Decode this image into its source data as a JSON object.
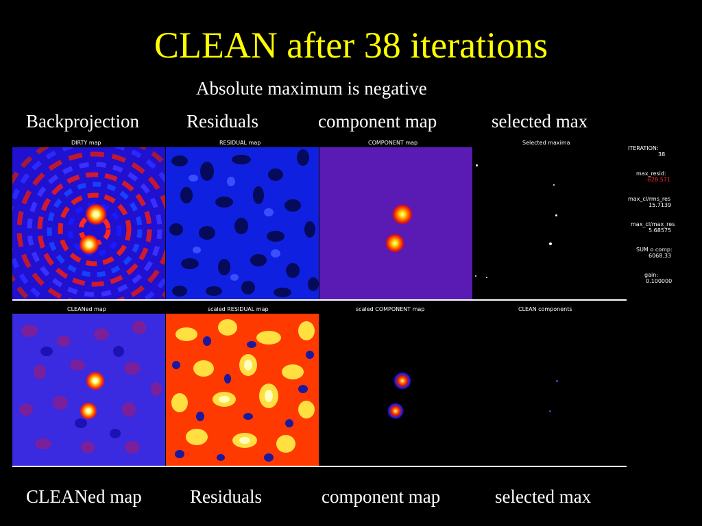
{
  "title": "CLEAN after 38 iterations",
  "subtitle": "Absolute maximum is negative",
  "top_labels": [
    "Backprojection",
    "Residuals",
    "component map",
    "selected max"
  ],
  "bottom_labels": [
    "CLEANed map",
    "Residuals",
    "component map",
    "selected max"
  ],
  "panels": {
    "dirty": "DIRTY map",
    "residual": "RESIDUAL map",
    "component": "COMPONENT map",
    "selected": "Selected maxima",
    "cleaned": "CLEANed map",
    "scaled_residual": "scaled RESIDUAL map",
    "scaled_component": "scaled COMPONENT map",
    "clean_components": "CLEAN components"
  },
  "info": {
    "iteration_label": "ITERATION:",
    "iteration_value": "38",
    "max_resid_label": "max_resid:",
    "max_resid_value": "-628.571",
    "max_resid_color": "#ff2a2a",
    "ratio1_label": "max_cl/rms_res",
    "ratio1_value": "15.7139",
    "ratio2_label": "max_cl/max_res",
    "ratio2_value": "5.68575",
    "sum_label": "SUM o comp:",
    "sum_value": "6068.33",
    "gain_label": "gain:",
    "gain_value": "0.100000"
  },
  "colors": {
    "title": "#ffff00",
    "text": "#ffffff",
    "background": "#000000"
  }
}
